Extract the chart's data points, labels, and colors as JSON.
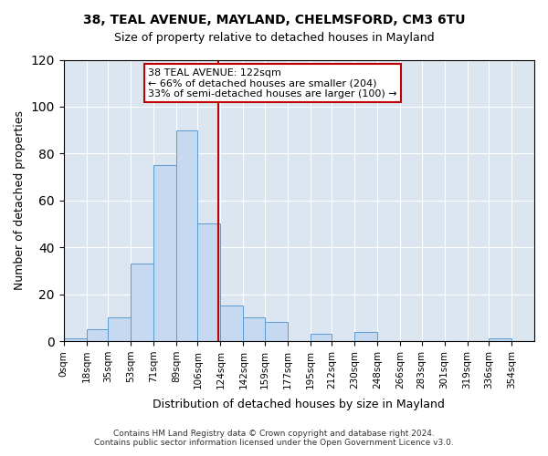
{
  "title_line1": "38, TEAL AVENUE, MAYLAND, CHELMSFORD, CM3 6TU",
  "title_line2": "Size of property relative to detached houses in Mayland",
  "xlabel": "Distribution of detached houses by size in Mayland",
  "ylabel": "Number of detached properties",
  "footer_line1": "Contains HM Land Registry data © Crown copyright and database right 2024.",
  "footer_line2": "Contains public sector information licensed under the Open Government Licence v3.0.",
  "property_size": 122,
  "property_label": "38 TEAL AVENUE: 122sqm",
  "annotation_line2": "← 66% of detached houses are smaller (204)",
  "annotation_line3": "33% of semi-detached houses are larger (100) →",
  "bin_labels": [
    "0sqm",
    "18sqm",
    "35sqm",
    "53sqm",
    "71sqm",
    "89sqm",
    "106sqm",
    "124sqm",
    "142sqm",
    "159sqm",
    "177sqm",
    "195sqm",
    "212sqm",
    "230sqm",
    "248sqm",
    "266sqm",
    "283sqm",
    "301sqm",
    "319sqm",
    "336sqm",
    "354sqm"
  ],
  "bin_edges": [
    0,
    18,
    35,
    53,
    71,
    89,
    106,
    124,
    142,
    159,
    177,
    195,
    212,
    230,
    248,
    266,
    283,
    301,
    319,
    336,
    354
  ],
  "bar_heights": [
    1,
    5,
    10,
    33,
    75,
    90,
    50,
    15,
    10,
    8,
    0,
    3,
    0,
    4,
    0,
    0,
    0,
    0,
    0,
    1
  ],
  "bar_color": "#c6d9f0",
  "bar_edge_color": "#5a9bd4",
  "vline_x": 122,
  "vline_color": "#c00000",
  "background_color": "#dce6f1",
  "plot_bg_color": "#dce6f1",
  "annotation_box_edge_color": "#c00000",
  "ylim": [
    0,
    120
  ],
  "yticks": [
    0,
    20,
    40,
    60,
    80,
    100,
    120
  ]
}
